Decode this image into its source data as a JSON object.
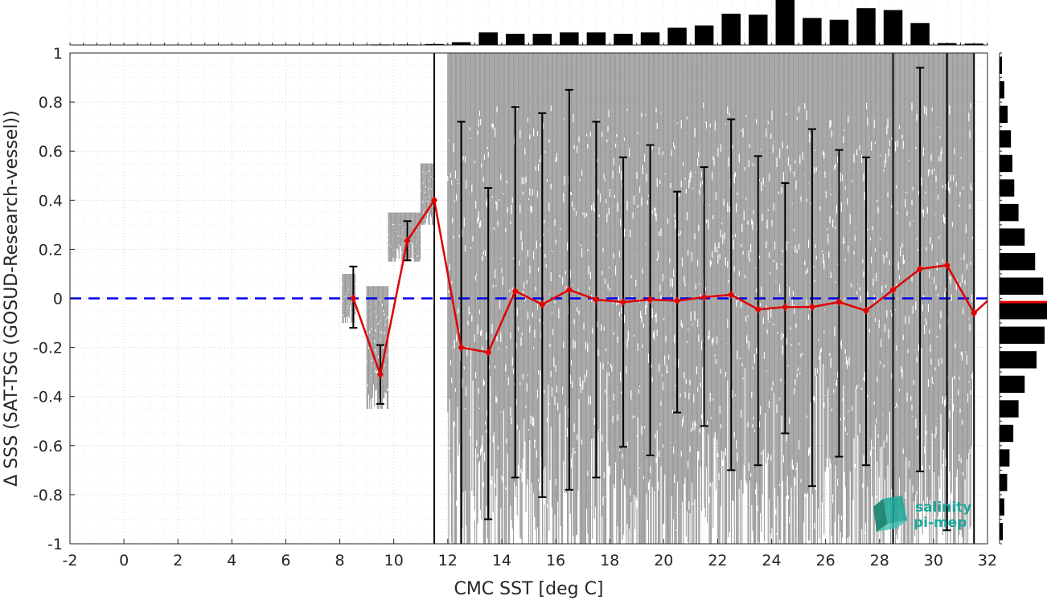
{
  "chart_data": {
    "type": "line",
    "title": "",
    "xlabel": "CMC SST [deg C]",
    "ylabel": "Δ SSS (SAT-TSG (GOSUD-Research-vessel))",
    "xlim": [
      -2,
      32
    ],
    "ylim": [
      -1,
      1
    ],
    "xticks": [
      "-2",
      "0",
      "2",
      "4",
      "6",
      "8",
      "10",
      "12",
      "14",
      "16",
      "18",
      "20",
      "22",
      "24",
      "26",
      "28",
      "30",
      "32"
    ],
    "yticks": [
      "1",
      "0.8",
      "0.6",
      "0.4",
      "0.2",
      "0",
      "-0.2",
      "-0.4",
      "-0.6",
      "-0.8",
      "-1"
    ],
    "grid": true,
    "zero_line": {
      "y": 0,
      "color": "#0000ee",
      "style": "dashed"
    },
    "mean_series": {
      "color": "#e00000",
      "x": [
        8.5,
        9.5,
        10.5,
        11.5,
        12.5,
        13.5,
        14.5,
        15.5,
        16.5,
        17.5,
        18.5,
        19.5,
        20.5,
        21.5,
        22.5,
        23.5,
        24.5,
        25.5,
        26.5,
        27.5,
        28.5,
        29.5,
        30.5,
        31.5,
        32.0
      ],
      "y": [
        0.0,
        -0.31,
        0.235,
        0.4,
        -0.2,
        -0.22,
        0.03,
        -0.025,
        0.035,
        -0.005,
        -0.015,
        -0.005,
        -0.01,
        0.005,
        0.015,
        -0.045,
        -0.035,
        -0.035,
        -0.015,
        -0.05,
        0.035,
        0.12,
        0.135,
        -0.06,
        -0.01
      ]
    },
    "error_bars": [
      {
        "x": 8.5,
        "low": -0.12,
        "high": 0.13
      },
      {
        "x": 9.5,
        "low": -0.43,
        "high": -0.19
      },
      {
        "x": 10.5,
        "low": 0.155,
        "high": 0.315
      },
      {
        "x": 11.5,
        "low": -1.0,
        "high": 1.0
      },
      {
        "x": 12.5,
        "low": -1.0,
        "high": 0.72
      },
      {
        "x": 13.5,
        "low": -0.9,
        "high": 0.45
      },
      {
        "x": 14.5,
        "low": -0.73,
        "high": 0.78
      },
      {
        "x": 15.5,
        "low": -0.81,
        "high": 0.755
      },
      {
        "x": 16.5,
        "low": -0.78,
        "high": 0.85
      },
      {
        "x": 17.5,
        "low": -0.73,
        "high": 0.72
      },
      {
        "x": 18.5,
        "low": -0.605,
        "high": 0.575
      },
      {
        "x": 19.5,
        "low": -0.64,
        "high": 0.625
      },
      {
        "x": 20.5,
        "low": -0.465,
        "high": 0.435
      },
      {
        "x": 21.5,
        "low": -0.52,
        "high": 0.535
      },
      {
        "x": 22.5,
        "low": -0.7,
        "high": 0.73
      },
      {
        "x": 23.5,
        "low": -0.68,
        "high": 0.58
      },
      {
        "x": 24.5,
        "low": -0.55,
        "high": 0.47
      },
      {
        "x": 25.5,
        "low": -0.765,
        "high": 0.69
      },
      {
        "x": 26.5,
        "low": -0.645,
        "high": 0.605
      },
      {
        "x": 27.5,
        "low": -0.68,
        "high": 0.575
      },
      {
        "x": 28.5,
        "low": -1.0,
        "high": 1.0
      },
      {
        "x": 29.5,
        "low": -0.705,
        "high": 0.94
      },
      {
        "x": 30.5,
        "low": -0.945,
        "high": 1.0
      },
      {
        "x": 31.5,
        "low": -1.0,
        "high": 1.0
      }
    ],
    "scatter_cloud": {
      "color": "#808080",
      "segments": [
        {
          "x_start": 8.1,
          "x_end": 8.6,
          "y_min": -0.1,
          "y_max": 0.1
        },
        {
          "x_start": 9.0,
          "x_end": 9.8,
          "y_min": -0.45,
          "y_max": 0.05
        },
        {
          "x_start": 9.8,
          "x_end": 11.0,
          "y_min": 0.15,
          "y_max": 0.35
        },
        {
          "x_start": 11.0,
          "x_end": 11.5,
          "y_min": 0.3,
          "y_max": 0.55
        },
        {
          "x_start": 12.0,
          "x_end": 31.5,
          "y_min": -1.0,
          "y_max": 1.0
        }
      ]
    },
    "top_histogram": {
      "x": [
        9.5,
        10.5,
        11.5,
        12.5,
        13.5,
        14.5,
        15.5,
        16.5,
        17.5,
        18.5,
        19.5,
        20.5,
        21.5,
        22.5,
        23.5,
        24.5,
        25.5,
        26.5,
        27.5,
        28.5,
        29.5,
        30.5,
        31.5
      ],
      "values": [
        0.01,
        0.01,
        0.02,
        0.06,
        0.27,
        0.24,
        0.24,
        0.27,
        0.27,
        0.24,
        0.27,
        0.37,
        0.42,
        0.67,
        0.65,
        1.0,
        0.58,
        0.54,
        0.79,
        0.75,
        0.47,
        0.04,
        0.03
      ]
    },
    "right_histogram": {
      "y": [
        0.95,
        0.85,
        0.75,
        0.65,
        0.55,
        0.45,
        0.35,
        0.25,
        0.15,
        0.05,
        -0.05,
        -0.15,
        -0.25,
        -0.35,
        -0.45,
        -0.55,
        -0.65,
        -0.75,
        -0.85,
        -0.95
      ],
      "values": [
        0.05,
        0.1,
        0.17,
        0.24,
        0.27,
        0.31,
        0.4,
        0.53,
        0.75,
        0.92,
        1.0,
        0.95,
        0.78,
        0.53,
        0.4,
        0.29,
        0.21,
        0.16,
        0.1,
        0.07
      ],
      "mean_line_color": "#e00000"
    }
  },
  "logo": {
    "line1": "salinity",
    "line2": "pi-mep",
    "color": "#1aa89a"
  }
}
